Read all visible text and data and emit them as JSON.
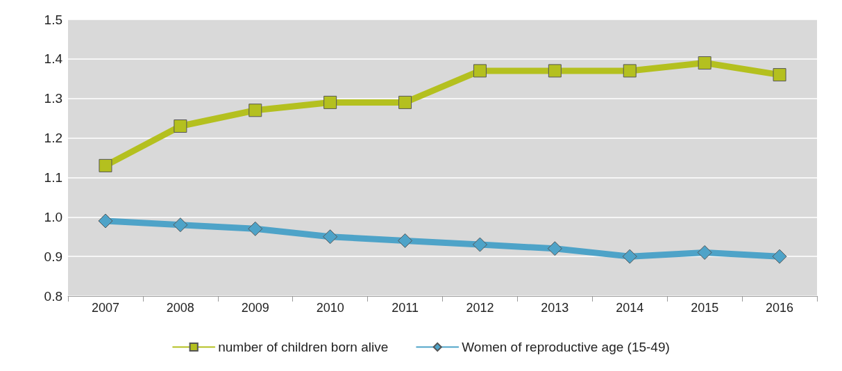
{
  "chart_data": {
    "type": "line",
    "categories": [
      "2007",
      "2008",
      "2009",
      "2010",
      "2011",
      "2012",
      "2013",
      "2014",
      "2015",
      "2016"
    ],
    "series": [
      {
        "name": "number of children born alive",
        "color": "#b4c01f",
        "marker": "square",
        "values": [
          1.13,
          1.23,
          1.27,
          1.29,
          1.29,
          1.37,
          1.37,
          1.37,
          1.39,
          1.36
        ]
      },
      {
        "name": "Women of reproductive age (15-49)",
        "color": "#4ea3c8",
        "marker": "diamond",
        "values": [
          0.99,
          0.98,
          0.97,
          0.95,
          0.94,
          0.93,
          0.92,
          0.9,
          0.91,
          0.9
        ]
      }
    ],
    "ylim": [
      0.8,
      1.5
    ],
    "yticks": [
      0.8,
      0.9,
      {
        "value": 1,
        "label": "1.0"
      },
      1.1,
      1.2,
      1.3,
      1.4,
      1.5
    ],
    "grid": "y",
    "legend": "bottom"
  }
}
